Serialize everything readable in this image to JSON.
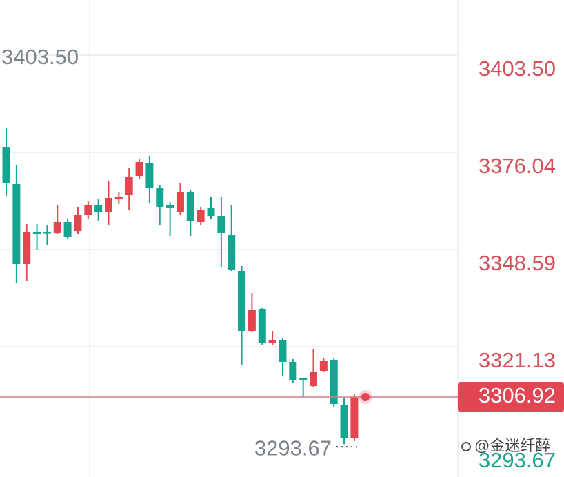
{
  "chart_data": {
    "type": "candlestick",
    "up_color": "#e5454f",
    "down_color": "#12a58f",
    "open": [
      3377.6,
      3367.09,
      3344.51,
      3353.46,
      3353.46,
      3353.27,
      3356.38,
      3353.85,
      3358.33,
      3361.06,
      3359.11,
      3363.0,
      3363.98,
      3369.23,
      3373.13,
      3365.92,
      3361.06,
      3359.3,
      3364.95,
      3356.38,
      3360.28,
      3357.94,
      3352.68,
      3342.56,
      3325.62,
      3331.66,
      3322.31,
      3323.09,
      3316.86,
      3312.19,
      3310.04,
      3314.33,
      3317.44,
      3304.59,
      3295.25
    ],
    "high": [
      3382.86,
      3372.35,
      3355.8,
      3355.8,
      3355.41,
      3361.06,
      3357.16,
      3360.67,
      3362.22,
      3363.0,
      3368.06,
      3364.95,
      3371.76,
      3374.29,
      3375.07,
      3366.9,
      3362.03,
      3367.29,
      3365.34,
      3360.67,
      3363.39,
      3363.39,
      3361.06,
      3343.92,
      3336.33,
      3332.05,
      3325.62,
      3323.67,
      3317.64,
      3312.38,
      3320.36,
      3317.83,
      3317.83,
      3306.54,
      3307.71
    ],
    "low": [
      3363.59,
      3339.25,
      3339.64,
      3348.59,
      3349.96,
      3352.88,
      3351.52,
      3352.88,
      3357.16,
      3356.77,
      3355.41,
      3361.44,
      3359.69,
      3368.45,
      3361.64,
      3355.41,
      3352.49,
      3358.33,
      3352.49,
      3355.41,
      3357.16,
      3343.53,
      3342.56,
      3315.88,
      3325.23,
      3321.73,
      3321.73,
      3312.96,
      3311.02,
      3306.54,
      3309.65,
      3313.94,
      3304.2,
      3293.67,
      3294.5
    ],
    "close": [
      3367.48,
      3344.51,
      3353.46,
      3352.88,
      3353.27,
      3356.38,
      3352.1,
      3358.33,
      3361.25,
      3359.11,
      3363.2,
      3363.39,
      3369.04,
      3373.32,
      3365.92,
      3360.67,
      3360.28,
      3364.95,
      3356.58,
      3359.89,
      3358.13,
      3353.27,
      3342.95,
      3325.62,
      3331.46,
      3322.31,
      3323.09,
      3316.86,
      3311.6,
      3311.8,
      3313.94,
      3317.25,
      3304.98,
      3295.25,
      3306.92
    ],
    "ylim": [
      3284.34,
      3419.08
    ],
    "yticks": [
      {
        "value": 3403.5,
        "label": "3403.50"
      },
      {
        "value": 3376.04,
        "label": "3376.04"
      },
      {
        "value": 3348.59,
        "label": "3348.59"
      },
      {
        "value": 3321.13,
        "label": "3321.13"
      }
    ],
    "grid": true,
    "high_label": "3403.50",
    "low_label": {
      "value": 3293.67,
      "label": "3293.67"
    },
    "last_price": {
      "value": 3306.92,
      "label": "3306.92",
      "color": "#e24652"
    },
    "low_axis_label": "3293.67",
    "watermark": "@金迷纤醉"
  }
}
